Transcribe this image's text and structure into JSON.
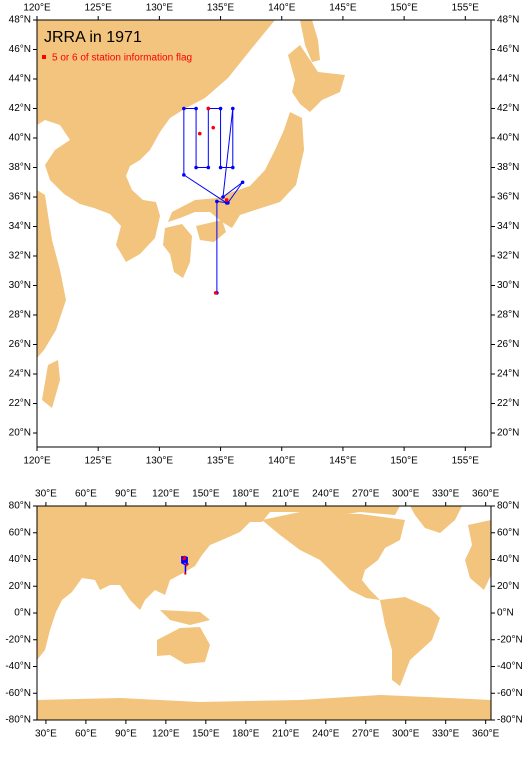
{
  "maps": [
    {
      "title": "JRRA in 1971",
      "legend": {
        "label": "5 or 6 of station information flag",
        "color": "#ff0000"
      },
      "xlim": [
        120,
        157.1
      ],
      "ylim": [
        19.05,
        48
      ],
      "xticks": [
        {
          "value": 120,
          "label": "120°E"
        },
        {
          "value": 125,
          "label": "125°E"
        },
        {
          "value": 130,
          "label": "130°E"
        },
        {
          "value": 135,
          "label": "135°E"
        },
        {
          "value": 140,
          "label": "140°E"
        },
        {
          "value": 145,
          "label": "145°E"
        },
        {
          "value": 150,
          "label": "150°E"
        },
        {
          "value": 155,
          "label": "155°E"
        }
      ],
      "yticks": [
        {
          "value": 20,
          "label": "20°N"
        },
        {
          "value": 22,
          "label": "22°N"
        },
        {
          "value": 24,
          "label": "24°N"
        },
        {
          "value": 26,
          "label": "26°N"
        },
        {
          "value": 28,
          "label": "28°N"
        },
        {
          "value": 30,
          "label": "30°N"
        },
        {
          "value": 32,
          "label": "32°N"
        },
        {
          "value": 34,
          "label": "34°N"
        },
        {
          "value": 36,
          "label": "36°N"
        },
        {
          "value": 38,
          "label": "38°N"
        },
        {
          "value": 40,
          "label": "40°N"
        },
        {
          "value": 42,
          "label": "42°N"
        },
        {
          "value": 44,
          "label": "44°N"
        },
        {
          "value": 46,
          "label": "46°N"
        },
        {
          "value": 48,
          "label": "48°N"
        }
      ],
      "track": {
        "color": "#0000ff",
        "lon": [
          135.5,
          132,
          132,
          133,
          133,
          134,
          134,
          135,
          135,
          136,
          136,
          135.2,
          136.8,
          135.6,
          134.7,
          134.7
        ],
        "lat": [
          35.6,
          37.5,
          42,
          42,
          38,
          38,
          42,
          42,
          38,
          38,
          42,
          36,
          37,
          35.6,
          35.7,
          29.5
        ]
      },
      "flagged": {
        "lon": [
          134.6,
          134,
          133.3,
          134.4,
          135.5
        ],
        "lat": [
          29.5,
          42,
          40.3,
          40.7,
          35.8
        ]
      }
    },
    {
      "xlim": [
        23.3,
        364
      ],
      "ylim": [
        -80,
        80
      ],
      "xticks": [
        {
          "value": 30,
          "label": "30°E"
        },
        {
          "value": 60,
          "label": "60°E"
        },
        {
          "value": 90,
          "label": "90°E"
        },
        {
          "value": 120,
          "label": "120°E"
        },
        {
          "value": 150,
          "label": "150°E"
        },
        {
          "value": 180,
          "label": "180°E"
        },
        {
          "value": 210,
          "label": "210°E"
        },
        {
          "value": 240,
          "label": "240°E"
        },
        {
          "value": 270,
          "label": "270°E"
        },
        {
          "value": 300,
          "label": "300°E"
        },
        {
          "value": 330,
          "label": "330°E"
        },
        {
          "value": 360,
          "label": "360°E"
        }
      ],
      "yticks": [
        {
          "value": 80,
          "label": "80°N"
        },
        {
          "value": 60,
          "label": "60°N"
        },
        {
          "value": 40,
          "label": "40°N"
        },
        {
          "value": 20,
          "label": "20°N"
        },
        {
          "value": 0,
          "label": "0°N"
        },
        {
          "value": -20,
          "label": "-20°N"
        },
        {
          "value": -40,
          "label": "-40°N"
        },
        {
          "value": -60,
          "label": "-60°N"
        },
        {
          "value": -80,
          "label": "-80°N"
        }
      ]
    }
  ]
}
